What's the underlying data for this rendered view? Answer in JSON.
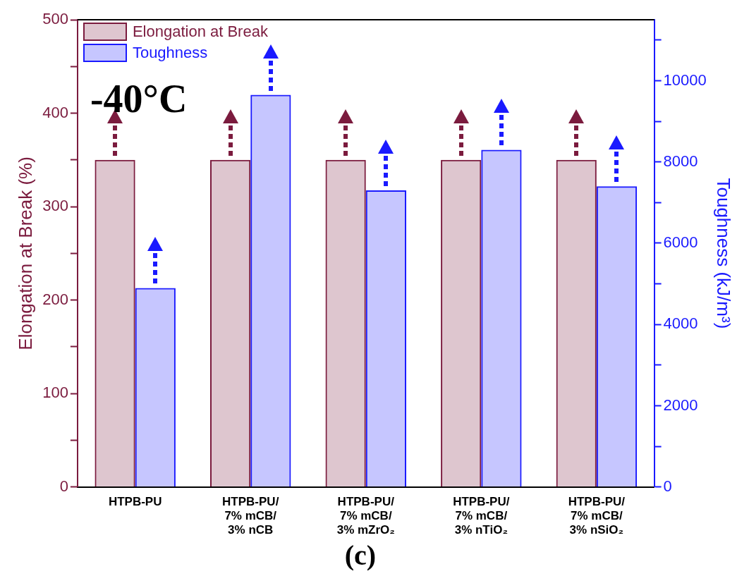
{
  "chart_data": {
    "type": "bar",
    "categories": [
      "HTPB-PU",
      "HTPB-PU/\n7% mCB/\n3% nCB",
      "HTPB-PU/\n7% mCB/\n3% mZrO₂",
      "HTPB-PU/\n7% mCB/\n3% nTiO₂",
      "HTPB-PU/\n7% mCB/\n3% nSiO₂"
    ],
    "series": [
      {
        "name": "Elongation at Break",
        "color": "#7b1b3e",
        "values": [
          350,
          350,
          350,
          350,
          350
        ]
      },
      {
        "name": "Toughness",
        "color": "#1a1aff",
        "axis": "y2",
        "values": [
          4900,
          9650,
          7300,
          8300,
          7400
        ]
      }
    ],
    "ylabel": "Elongation at Break (%)",
    "y2label": "Toughness (kJ/m³)",
    "ylim": [
      0,
      500
    ],
    "yticks": [
      0,
      {
        "value": 50,
        "label": null
      },
      100,
      {
        "value": 150,
        "label": null
      },
      200,
      {
        "value": 250,
        "label": null
      },
      300,
      {
        "value": 350,
        "label": null
      },
      400,
      {
        "value": 450,
        "label": null
      },
      500
    ],
    "y2lim": [
      0,
      11500
    ],
    "y2ticks": [
      0,
      {
        "value": 1000,
        "label": null
      },
      2000,
      {
        "value": 3000,
        "label": null
      },
      4000,
      {
        "value": 5000,
        "label": null
      },
      6000,
      {
        "value": 7000,
        "label": null
      },
      8000,
      {
        "value": 9000,
        "label": null
      },
      10000,
      {
        "value": 11000,
        "label": null
      }
    ],
    "legend": "top left",
    "grid": false,
    "annotations": [
      "-40°C",
      "(c)"
    ]
  }
}
